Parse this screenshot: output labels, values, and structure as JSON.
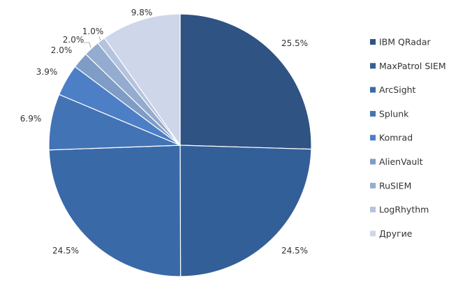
{
  "chart_data": {
    "type": "pie",
    "legend_position": "right",
    "slices": [
      {
        "name": "IBM QRadar",
        "value": 25.5,
        "label": "25.5%",
        "color": "#2F5382"
      },
      {
        "name": "MaxPatrol SIEM",
        "value": 24.5,
        "label": "24.5%",
        "color": "#335F99"
      },
      {
        "name": "ArcSight",
        "value": 24.5,
        "label": "24.5%",
        "color": "#3A69A8"
      },
      {
        "name": "Splunk",
        "value": 6.9,
        "label": "6.9%",
        "color": "#4273B5"
      },
      {
        "name": "Komrad",
        "value": 3.9,
        "label": "3.9%",
        "color": "#4D7FC6"
      },
      {
        "name": "AlienVault",
        "value": 2.0,
        "label": "2.0%",
        "color": "#7F9CC7"
      },
      {
        "name": "RuSIEM",
        "value": 2.0,
        "label": "2.0%",
        "color": "#94ACCF"
      },
      {
        "name": "LogRhythm",
        "value": 1.0,
        "label": "1.0%",
        "color": "#B4C3DE"
      },
      {
        "name": "Другие",
        "value": 9.8,
        "label": "9.8%",
        "color": "#CED6EA"
      }
    ]
  }
}
